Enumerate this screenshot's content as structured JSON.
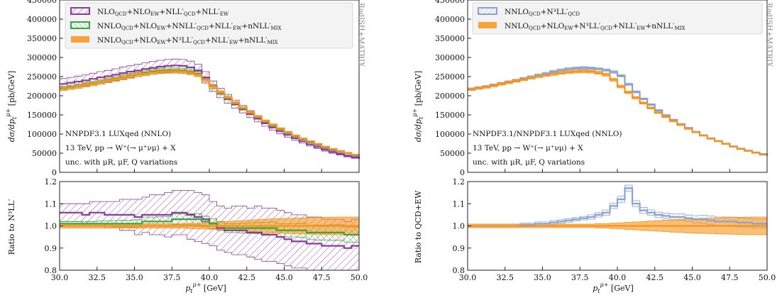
{
  "chart_data": [
    {
      "type": "line",
      "panel": "left",
      "side_label": "RadISH+MATRIX",
      "info_lines": [
        "NNPDF3.1 LUXqed (NNLO)",
        "13 TeV, pp → W⁺(→ μ⁺νμ) + X",
        "unc. with μR, μF, Q variations"
      ],
      "main": {
        "ylabel": "dσ/dp_t^μ+ [pb/GeV]",
        "xlim": [
          30.0,
          50.0
        ],
        "ylim": [
          0,
          450000
        ],
        "yticks": [
          "0",
          "50000",
          "100000",
          "150000",
          "200000",
          "250000",
          "300000",
          "350000",
          "400000",
          "450000"
        ],
        "x": [
          30.0,
          30.5,
          31.0,
          31.5,
          32.0,
          32.5,
          33.0,
          33.5,
          34.0,
          34.5,
          35.0,
          35.5,
          36.0,
          36.5,
          37.0,
          37.5,
          38.0,
          38.5,
          39.0,
          39.5,
          40.0,
          40.5,
          41.0,
          41.5,
          42.0,
          42.5,
          43.0,
          43.5,
          44.0,
          44.5,
          45.0,
          45.5,
          46.0,
          46.5,
          47.0,
          47.5,
          48.0,
          48.5,
          49.0,
          49.5,
          50.0
        ],
        "series": [
          {
            "name": "NLO_QCD+NLO_EW+NLL'_QCD+NLL'_EW",
            "color": "#8e3ba0",
            "band": 0.06,
            "values": [
              231000,
              234000,
              237000,
              240000,
              244000,
              248000,
              251000,
              255000,
              259000,
              263000,
              266000,
              270000,
              273000,
              276000,
              278000,
              279000,
              278000,
              274000,
              266000,
              248000,
              225000,
              207000,
              192000,
              178000,
              165000,
              152000,
              140000,
              128000,
              117000,
              107000,
              98000,
              89000,
              81000,
              73000,
              66000,
              59000,
              53000,
              48000,
              43000,
              39000,
              35000
            ]
          },
          {
            "name": "NNLO_QCD+NLO_EW+NNLL'_QCD+NLL'_EW+nNLL'_MIX",
            "color": "#3aa53a",
            "band": 0.025,
            "values": [
              219000,
              222000,
              225000,
              229000,
              232000,
              236000,
              240000,
              244000,
              248000,
              252000,
              256000,
              260000,
              263000,
              265000,
              266000,
              266000,
              265000,
              262000,
              257000,
              243000,
              224000,
              208000,
              194000,
              180000,
              167000,
              155000,
              144000,
              133000,
              123000,
              113000,
              104000,
              95000,
              87000,
              80000,
              73000,
              66000,
              60000,
              55000,
              50000,
              45000,
              42000
            ]
          },
          {
            "name": "NNLO_QCD+NLO_EW+N³LL'_QCD+NLL'_EW+nNLL'_MIX",
            "color": "#f7941d",
            "band": 0.02,
            "values": [
              218000,
              221000,
              224000,
              228000,
              231000,
              235000,
              239000,
              243000,
              247000,
              251000,
              255000,
              258000,
              261000,
              263000,
              264000,
              264000,
              263000,
              260000,
              255000,
              242000,
              224000,
              209000,
              195000,
              181000,
              168000,
              156000,
              145000,
              134000,
              124000,
              114000,
              105000,
              96000,
              88000,
              81000,
              74000,
              67000,
              61000,
              56000,
              51000,
              46000,
              43000
            ]
          }
        ]
      },
      "ratio": {
        "ylabel": "Ratio to N³LL'",
        "ylim": [
          0.8,
          1.2
        ],
        "yticks": [
          "0.8",
          "0.9",
          "1.0",
          "1.1",
          "1.2"
        ],
        "xticks": [
          "30.0",
          "32.5",
          "35.0",
          "37.5",
          "40.0",
          "42.5",
          "45.0",
          "47.5",
          "50.0"
        ],
        "xlabel": "p_t^μ+ [GeV]",
        "series": [
          {
            "color": "#8e3ba0",
            "values": [
              1.06,
              1.06,
              1.06,
              1.05,
              1.06,
              1.06,
              1.05,
              1.05,
              1.05,
              1.05,
              1.04,
              1.05,
              1.05,
              1.05,
              1.05,
              1.06,
              1.06,
              1.05,
              1.04,
              1.03,
              1.01,
              0.99,
              0.98,
              0.98,
              0.98,
              0.97,
              0.97,
              0.96,
              0.96,
              0.95,
              0.94,
              0.93,
              0.93,
              0.92,
              0.92,
              0.91,
              0.91,
              0.91,
              0.9,
              0.91,
              0.91
            ],
            "band": [
              0.04,
              0.04,
              0.04,
              0.05,
              0.05,
              0.05,
              0.06,
              0.06,
              0.07,
              0.07,
              0.08,
              0.08,
              0.09,
              0.09,
              0.1,
              0.1,
              0.1,
              0.11,
              0.11,
              0.11,
              0.1,
              0.1,
              0.1,
              0.11,
              0.11,
              0.11,
              0.12,
              0.12,
              0.12,
              0.12,
              0.12,
              0.12,
              0.12,
              0.12,
              0.12,
              0.12,
              0.12,
              0.12,
              0.12,
              0.12,
              0.12
            ]
          },
          {
            "color": "#3aa53a",
            "values": [
              1.01,
              1.01,
              1.01,
              1.01,
              1.01,
              1.01,
              1.01,
              1.01,
              1.01,
              1.01,
              1.01,
              1.02,
              1.02,
              1.02,
              1.02,
              1.03,
              1.03,
              1.03,
              1.03,
              1.02,
              1.01,
              1.0,
              0.99,
              0.99,
              0.99,
              0.99,
              0.99,
              0.99,
              0.99,
              0.98,
              0.98,
              0.98,
              0.98,
              0.97,
              0.97,
              0.97,
              0.97,
              0.97,
              0.96,
              0.96,
              0.96
            ],
            "band": [
              0.01,
              0.01,
              0.01,
              0.01,
              0.01,
              0.012,
              0.012,
              0.014,
              0.015,
              0.016,
              0.018,
              0.02,
              0.02,
              0.022,
              0.022,
              0.024,
              0.025,
              0.025,
              0.025,
              0.024,
              0.022,
              0.02,
              0.02,
              0.02,
              0.022,
              0.024,
              0.025,
              0.026,
              0.028,
              0.03,
              0.03,
              0.03,
              0.032,
              0.032,
              0.034,
              0.034,
              0.035,
              0.035,
              0.035,
              0.035,
              0.035
            ]
          },
          {
            "color": "#f7941d",
            "values": [
              1.0,
              1.0,
              1.0,
              1.0,
              1.0,
              1.0,
              1.0,
              1.0,
              1.0,
              1.0,
              1.0,
              1.0,
              1.0,
              1.0,
              1.0,
              1.0,
              1.0,
              1.0,
              1.0,
              1.0,
              1.0,
              1.0,
              1.0,
              1.0,
              1.0,
              1.0,
              1.0,
              1.0,
              1.0,
              1.0,
              1.0,
              1.0,
              1.0,
              1.0,
              1.0,
              1.0,
              1.0,
              1.0,
              1.0,
              1.0,
              1.0
            ],
            "band": [
              0.01,
              0.01,
              0.01,
              0.01,
              0.01,
              0.01,
              0.01,
              0.01,
              0.01,
              0.01,
              0.01,
              0.01,
              0.01,
              0.01,
              0.01,
              0.01,
              0.01,
              0.012,
              0.012,
              0.014,
              0.016,
              0.018,
              0.02,
              0.022,
              0.024,
              0.026,
              0.028,
              0.03,
              0.032,
              0.033,
              0.034,
              0.035,
              0.036,
              0.037,
              0.038,
              0.039,
              0.04,
              0.04,
              0.04,
              0.04,
              0.04
            ]
          }
        ]
      }
    },
    {
      "type": "line",
      "panel": "right",
      "side_label": "RadISH+MATRIX",
      "info_lines": [
        "NNPDF3.1/NNPDF3.1 LUXqed (NNLO)",
        "13 TeV, pp → W⁺(→ μ⁺νμ) + X",
        "unc. with μR, μF, Q variations"
      ],
      "main": {
        "ylabel": "dσ/dp_t^μ+ [pb/GeV]",
        "xlim": [
          30.0,
          50.0
        ],
        "ylim": [
          0,
          450000
        ],
        "yticks": [
          "0",
          "50000",
          "100000",
          "150000",
          "200000",
          "250000",
          "300000",
          "350000",
          "400000",
          "450000"
        ],
        "x": [
          30.0,
          30.5,
          31.0,
          31.5,
          32.0,
          32.5,
          33.0,
          33.5,
          34.0,
          34.5,
          35.0,
          35.5,
          36.0,
          36.5,
          37.0,
          37.5,
          38.0,
          38.5,
          39.0,
          39.5,
          40.0,
          40.5,
          41.0,
          41.5,
          42.0,
          42.5,
          43.0,
          43.5,
          44.0,
          44.5,
          45.0,
          45.5,
          46.0,
          46.5,
          47.0,
          47.5,
          48.0,
          48.5,
          49.0,
          49.5,
          50.0
        ],
        "series": [
          {
            "name": "NNLO_QCD+N³LL'_QCD",
            "color": "#8aa2d2",
            "band": 0.012,
            "values": [
              218000,
              221000,
              224000,
              228000,
              232000,
              236000,
              240000,
              245000,
              249000,
              254000,
              258000,
              263000,
              267000,
              270000,
              272000,
              273000,
              272000,
              270000,
              267000,
              262000,
              252000,
              230000,
              210000,
              192000,
              177000,
              162000,
              149000,
              137000,
              126000,
              116000,
              106000,
              97000,
              89000,
              82000,
              75000,
              68000,
              62000,
              57000,
              52000,
              48000,
              44000
            ]
          },
          {
            "name": "NNLO_QCD+NLO_EW+N³LL'_QCD+NLL'_EW+nNLL'_MIX",
            "color": "#f7941d",
            "band": 0.015,
            "values": [
              217000,
              220000,
              223000,
              227000,
              231000,
              235000,
              239000,
              243000,
              247000,
              251000,
              254000,
              257000,
              260000,
              262000,
              263000,
              264000,
              263000,
              260000,
              255000,
              242000,
              224000,
              209000,
              195000,
              181000,
              168000,
              156000,
              145000,
              134000,
              124000,
              114000,
              105000,
              96000,
              88000,
              81000,
              74000,
              67000,
              61000,
              56000,
              51000,
              46000,
              43000
            ]
          }
        ]
      },
      "ratio": {
        "ylabel": "Ratio to QCD+EW",
        "ylim": [
          0.8,
          1.2
        ],
        "yticks": [
          "0.8",
          "0.9",
          "1.0",
          "1.1",
          "1.2"
        ],
        "xticks": [
          "30.0",
          "32.5",
          "35.0",
          "37.5",
          "40.0",
          "42.5",
          "45.0",
          "47.5",
          "50.0"
        ],
        "xlabel": "p_t^μ+ [GeV]",
        "series": [
          {
            "color": "#8aa2d2",
            "values": [
              1.0,
              1.0,
              1.0,
              1.0,
              1.0,
              1.0,
              1.0,
              1.005,
              1.005,
              1.01,
              1.01,
              1.015,
              1.02,
              1.025,
              1.03,
              1.035,
              1.04,
              1.05,
              1.06,
              1.09,
              1.12,
              1.17,
              1.1,
              1.07,
              1.06,
              1.05,
              1.045,
              1.04,
              1.04,
              1.035,
              1.03,
              1.03,
              1.025,
              1.02,
              1.02,
              1.02,
              1.015,
              1.015,
              1.01,
              1.01,
              1.01
            ],
            "band": [
              0.008,
              0.008,
              0.008,
              0.008,
              0.008,
              0.008,
              0.008,
              0.008,
              0.008,
              0.008,
              0.008,
              0.008,
              0.008,
              0.008,
              0.008,
              0.008,
              0.01,
              0.01,
              0.012,
              0.012,
              0.014,
              0.014,
              0.014,
              0.014,
              0.012,
              0.012,
              0.012,
              0.014,
              0.014,
              0.014,
              0.016,
              0.018,
              0.02,
              0.02,
              0.02,
              0.02,
              0.02,
              0.02,
              0.02,
              0.02,
              0.02
            ]
          },
          {
            "color": "#f7941d",
            "values": [
              1.0,
              1.0,
              1.0,
              1.0,
              1.0,
              1.0,
              1.0,
              1.0,
              1.0,
              1.0,
              1.0,
              1.0,
              1.0,
              1.0,
              1.0,
              1.0,
              1.0,
              1.0,
              1.0,
              1.0,
              1.0,
              1.0,
              1.0,
              1.0,
              1.0,
              1.0,
              1.0,
              1.0,
              1.0,
              1.0,
              1.0,
              1.0,
              1.0,
              1.0,
              1.0,
              1.0,
              1.0,
              1.0,
              1.0,
              1.0,
              1.0
            ],
            "band": [
              0.008,
              0.008,
              0.008,
              0.008,
              0.008,
              0.008,
              0.008,
              0.008,
              0.008,
              0.008,
              0.008,
              0.008,
              0.008,
              0.008,
              0.008,
              0.008,
              0.008,
              0.01,
              0.01,
              0.012,
              0.014,
              0.016,
              0.018,
              0.02,
              0.022,
              0.024,
              0.026,
              0.028,
              0.03,
              0.032,
              0.033,
              0.034,
              0.035,
              0.036,
              0.037,
              0.038,
              0.039,
              0.04,
              0.04,
              0.04,
              0.04
            ]
          }
        ]
      }
    }
  ]
}
